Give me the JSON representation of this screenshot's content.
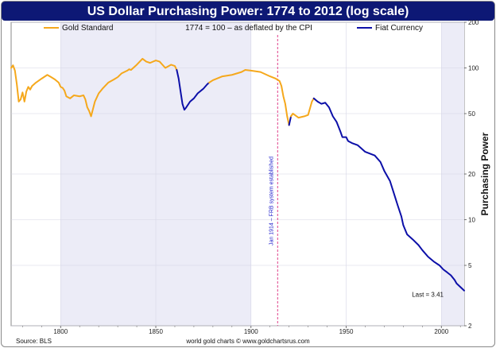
{
  "colors": {
    "title_bar": "#0d1875",
    "gold": "#f5a81c",
    "fiat": "#0c0fa8",
    "band": "#ececf7",
    "grid": "#d6d6e6",
    "fed_line": "#e0408a",
    "annotation": "#2222cc"
  },
  "chart_data": {
    "type": "line",
    "title": "US Dollar Purchasing Power: 1774 to 2012 (log scale)",
    "subtitle": "1774 = 100 – as deflated by the CPI",
    "ylabel": "Purchasing Power",
    "xlabel": "",
    "yscale": "log",
    "xlim": [
      1774,
      2012
    ],
    "ylim": [
      2,
      200
    ],
    "x_ticks": [
      1800,
      1850,
      1900,
      1950,
      2000
    ],
    "y_ticks": [
      2,
      5,
      10,
      20,
      50,
      100,
      200
    ],
    "grid": true,
    "legend_position": "top",
    "series": [
      {
        "name": "Gold Standard",
        "color": "#f5a81c",
        "points": [
          [
            1774,
            100
          ],
          [
            1775,
            104
          ],
          [
            1776,
            96
          ],
          [
            1777,
            78
          ],
          [
            1778,
            60
          ],
          [
            1779,
            62
          ],
          [
            1780,
            69
          ],
          [
            1781,
            60
          ],
          [
            1782,
            70
          ],
          [
            1783,
            75
          ],
          [
            1784,
            72
          ],
          [
            1785,
            76
          ],
          [
            1787,
            80
          ],
          [
            1790,
            85
          ],
          [
            1793,
            90
          ],
          [
            1795,
            87
          ],
          [
            1797,
            84
          ],
          [
            1799,
            80
          ],
          [
            1800,
            75
          ],
          [
            1801,
            74
          ],
          [
            1802,
            71
          ],
          [
            1803,
            65
          ],
          [
            1805,
            63
          ],
          [
            1807,
            66
          ],
          [
            1810,
            65
          ],
          [
            1812,
            66
          ],
          [
            1813,
            62
          ],
          [
            1814,
            55
          ],
          [
            1815,
            52
          ],
          [
            1816,
            48
          ],
          [
            1818,
            60
          ],
          [
            1820,
            68
          ],
          [
            1822,
            73
          ],
          [
            1825,
            80
          ],
          [
            1828,
            84
          ],
          [
            1830,
            87
          ],
          [
            1832,
            92
          ],
          [
            1835,
            96
          ],
          [
            1836,
            98
          ],
          [
            1837,
            97
          ],
          [
            1840,
            105
          ],
          [
            1843,
            115
          ],
          [
            1845,
            110
          ],
          [
            1847,
            108
          ],
          [
            1850,
            112
          ],
          [
            1852,
            110
          ],
          [
            1855,
            100
          ],
          [
            1858,
            105
          ],
          [
            1860,
            103
          ],
          [
            1861,
            97
          ]
        ]
      },
      {
        "name": "Fiat Currency",
        "color": "#0c0fa8",
        "points": [
          [
            1861,
            97
          ],
          [
            1862,
            85
          ],
          [
            1863,
            70
          ],
          [
            1864,
            58
          ],
          [
            1865,
            53
          ],
          [
            1866,
            55
          ],
          [
            1868,
            60
          ],
          [
            1870,
            63
          ],
          [
            1872,
            68
          ],
          [
            1875,
            73
          ],
          [
            1877,
            78
          ],
          [
            1878,
            80
          ]
        ]
      },
      {
        "name": "Gold Standard",
        "color": "#f5a81c",
        "points": [
          [
            1878,
            80
          ],
          [
            1880,
            83
          ],
          [
            1885,
            88
          ],
          [
            1890,
            90
          ],
          [
            1895,
            94
          ],
          [
            1897,
            97
          ],
          [
            1900,
            96
          ],
          [
            1905,
            94
          ],
          [
            1910,
            88
          ],
          [
            1913,
            85
          ],
          [
            1915,
            82
          ],
          [
            1916,
            76
          ],
          [
            1917,
            65
          ],
          [
            1918,
            58
          ],
          [
            1919,
            48
          ],
          [
            1920,
            42
          ]
        ]
      },
      {
        "name": "Fiat Currency",
        "color": "#0c0fa8",
        "points": [
          [
            1920,
            42
          ],
          [
            1921,
            48
          ]
        ]
      },
      {
        "name": "Gold Standard",
        "color": "#f5a81c",
        "points": [
          [
            1921,
            48
          ],
          [
            1922,
            50
          ],
          [
            1925,
            47
          ],
          [
            1928,
            48
          ],
          [
            1930,
            49
          ],
          [
            1932,
            60
          ],
          [
            1933,
            63
          ]
        ]
      },
      {
        "name": "Fiat Currency",
        "color": "#0c0fa8",
        "points": [
          [
            1933,
            63
          ],
          [
            1935,
            60
          ],
          [
            1937,
            58
          ],
          [
            1939,
            59
          ],
          [
            1941,
            55
          ],
          [
            1943,
            48
          ],
          [
            1945,
            44
          ],
          [
            1947,
            38
          ],
          [
            1948,
            35
          ],
          [
            1950,
            35
          ],
          [
            1951,
            33
          ],
          [
            1953,
            32
          ],
          [
            1956,
            31
          ],
          [
            1960,
            28
          ],
          [
            1965,
            26.5
          ],
          [
            1968,
            24
          ],
          [
            1970,
            21
          ],
          [
            1973,
            18
          ],
          [
            1975,
            15
          ],
          [
            1977,
            12.5
          ],
          [
            1979,
            10.5
          ],
          [
            1980,
            9.2
          ],
          [
            1982,
            8
          ],
          [
            1985,
            7.4
          ],
          [
            1988,
            6.8
          ],
          [
            1990,
            6.3
          ],
          [
            1993,
            5.7
          ],
          [
            1996,
            5.3
          ],
          [
            1999,
            5.0
          ],
          [
            2001,
            4.7
          ],
          [
            2003,
            4.5
          ],
          [
            2005,
            4.3
          ],
          [
            2007,
            4.0
          ],
          [
            2008,
            3.8
          ],
          [
            2010,
            3.6
          ],
          [
            2012,
            3.41
          ]
        ]
      }
    ],
    "shaded_bands": [
      [
        1800,
        1900
      ],
      [
        2000,
        2012
      ]
    ],
    "annotations": {
      "fed_event": {
        "x": 1914,
        "text": "Jan 1914 – FRB system established"
      },
      "last_label": {
        "text": "Last = 3.41"
      }
    },
    "footer": {
      "left": "Source: BLS",
      "center": "world gold charts © www.goldchartsrus.com"
    }
  }
}
